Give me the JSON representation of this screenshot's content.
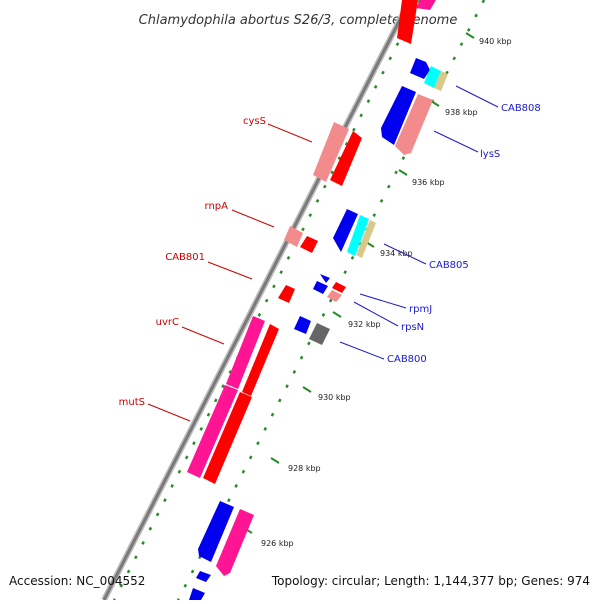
{
  "title": "Chlamydophila abortus S26/3, complete genome",
  "footer": {
    "accession": "Accession: NC_004552",
    "topology": "Topology: circular; Length: 1,144,377 bp; Genes: 974"
  },
  "colors": {
    "backbone": "#8a8a8a",
    "tick_major": "#2a8a2a",
    "tick_minor": "#2a8a2a",
    "red": "#ff0000",
    "pink": "#f28c8c",
    "magenta": "#ff1493",
    "blue": "#0000ee",
    "cyan": "#00ffff",
    "tan": "#d8c98a",
    "gray": "#666666",
    "label_red": "#cc0000",
    "label_blue": "#1a1acc"
  },
  "scale": {
    "kbp_labels": [
      "940 kbp",
      "938 kbp",
      "936 kbp",
      "934 kbp",
      "932 kbp",
      "930 kbp",
      "928 kbp",
      "926 kbp"
    ]
  },
  "labels": {
    "left": [
      "cysS",
      "rnpA",
      "CAB801",
      "uvrC",
      "mutS"
    ],
    "right": [
      "CAB808",
      "lysS",
      "CAB805",
      "rpmJ",
      "rpsN",
      "CAB800"
    ]
  }
}
